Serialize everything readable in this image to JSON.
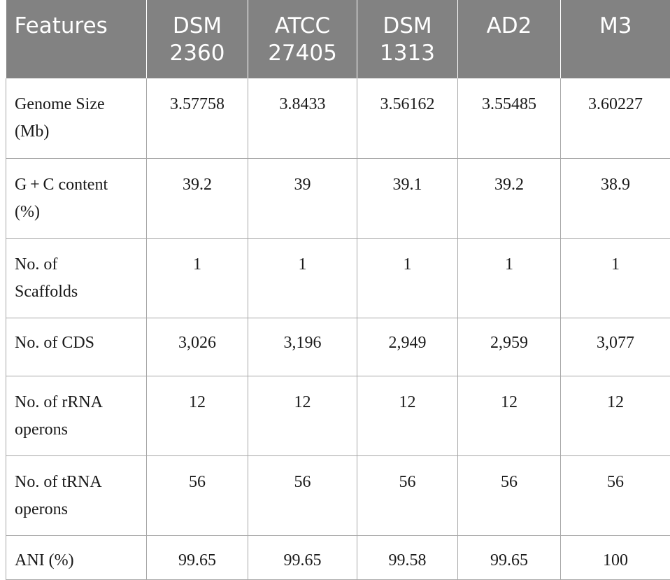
{
  "header": {
    "features": "Features",
    "cols": [
      {
        "line1": "DSM",
        "line2": "2360"
      },
      {
        "line1": "ATCC",
        "line2": "27405"
      },
      {
        "line1": "DSM",
        "line2": "1313"
      },
      {
        "line1": "AD2",
        "line2": ""
      },
      {
        "line1": "M3",
        "line2": ""
      }
    ]
  },
  "rows": [
    {
      "label1": "Genome Size",
      "label2": "(Mb)",
      "values": [
        "3.57758",
        "3.8433",
        "3.56162",
        "3.55485",
        "3.60227"
      ]
    },
    {
      "label1": "G + C content",
      "label2": "(%)",
      "values": [
        "39.2",
        "39",
        "39.1",
        "39.2",
        "38.9"
      ]
    },
    {
      "label1": "No. of",
      "label2": "Scaffolds",
      "values": [
        "1",
        "1",
        "1",
        "1",
        "1"
      ]
    },
    {
      "label1": "No. of CDS",
      "label2": "",
      "values": [
        "3,026",
        "3,196",
        "2,949",
        "2,959",
        "3,077"
      ]
    },
    {
      "label1": "No. of rRNA",
      "label2": "operons",
      "values": [
        "12",
        "12",
        "12",
        "12",
        "12"
      ]
    },
    {
      "label1": "No. of tRNA",
      "label2": "operons",
      "values": [
        "56",
        "56",
        "56",
        "56",
        "56"
      ]
    },
    {
      "label1": "ANI (%)",
      "label2": "",
      "values": [
        "99.65",
        "99.65",
        "99.58",
        "99.65",
        "100"
      ]
    }
  ]
}
